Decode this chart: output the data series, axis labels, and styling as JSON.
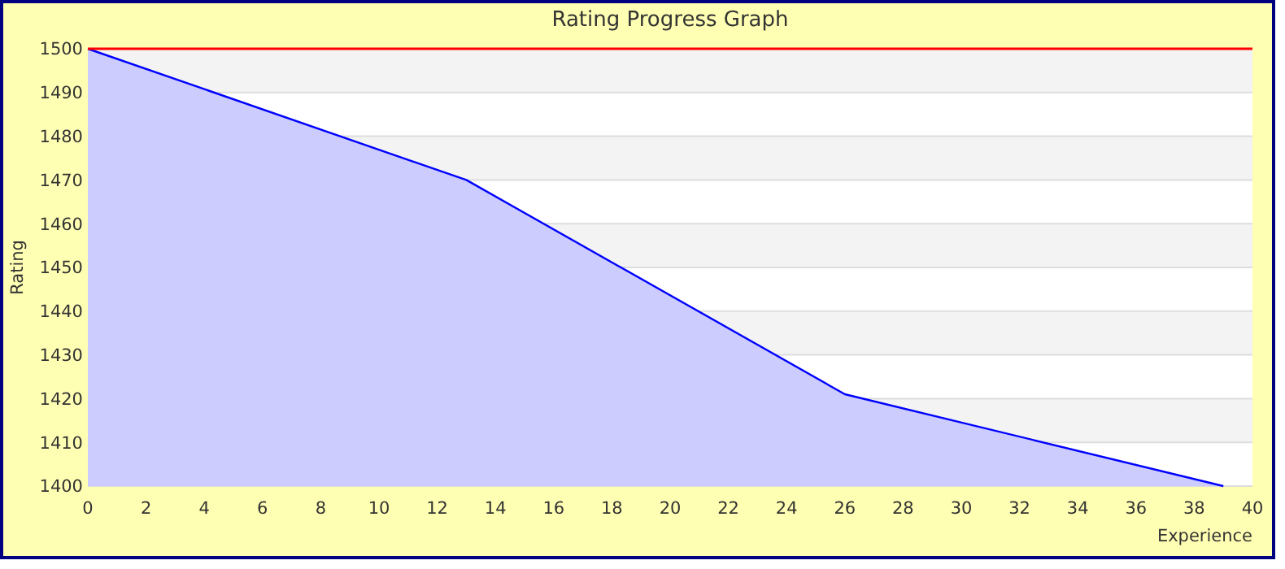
{
  "chart_data": {
    "type": "area",
    "title": "Rating Progress Graph",
    "xlabel": "Experience",
    "ylabel": "Rating",
    "x": [
      0,
      13,
      26,
      39
    ],
    "series": [
      {
        "color": "#0000ff",
        "values": [
          1500,
          1470,
          1421,
          1400
        ]
      }
    ],
    "xlim": [
      0,
      40
    ],
    "xticks": [
      0,
      2,
      4,
      6,
      8,
      10,
      12,
      14,
      16,
      18,
      20,
      22,
      24,
      26,
      28,
      30,
      32,
      34,
      36,
      38,
      40
    ],
    "ylim": [
      1400,
      1500
    ],
    "yticks": [
      1400,
      1410,
      1420,
      1430,
      1440,
      1450,
      1460,
      1470,
      1480,
      1490,
      1500
    ],
    "grid": "y",
    "ref_lines": [
      {
        "axis": "y",
        "value": 1500,
        "color": "#ff0000"
      }
    ]
  }
}
